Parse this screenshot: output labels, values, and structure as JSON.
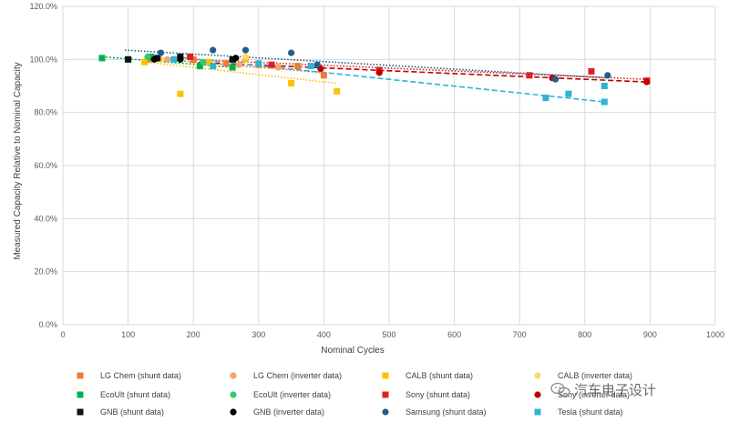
{
  "chart_data": {
    "type": "scatter",
    "title": "",
    "xlabel": "Nominal Cycles",
    "ylabel": "Measured Capacity Relative to Nominal Capacity",
    "xlim": [
      0,
      1000
    ],
    "ylim": [
      0,
      120
    ],
    "x_ticks": [
      0,
      100,
      200,
      300,
      400,
      500,
      600,
      700,
      800,
      900,
      1000
    ],
    "y_ticks": [
      "0.0%",
      "20.0%",
      "40.0%",
      "60.0%",
      "80.0%",
      "100.0%",
      "120.0%"
    ],
    "grid": true,
    "legend_position": "bottom",
    "series": [
      {
        "name": "LG Chem (shunt data)",
        "color": "#ed7d31",
        "marker": "square",
        "points": [
          [
            130,
            100
          ],
          [
            200,
            100
          ],
          [
            250,
            98.5
          ],
          [
            300,
            98
          ],
          [
            360,
            97.5
          ],
          [
            400,
            94
          ]
        ],
        "trend": [
          [
            130,
            100.5
          ],
          [
            400,
            95
          ]
        ]
      },
      {
        "name": "LG Chem (inverter data)",
        "color": "#f4a26a",
        "marker": "circle",
        "points": [
          [
            160,
            100
          ],
          [
            220,
            99
          ],
          [
            270,
            98
          ],
          [
            330,
            97
          ]
        ],
        "trend": null
      },
      {
        "name": "CALB (shunt data)",
        "color": "#ffc000",
        "marker": "square",
        "points": [
          [
            125,
            99
          ],
          [
            180,
            87
          ],
          [
            225,
            99
          ],
          [
            280,
            100
          ],
          [
            350,
            91
          ],
          [
            420,
            88
          ]
        ],
        "trend": [
          [
            125,
            99
          ],
          [
            420,
            91
          ]
        ]
      },
      {
        "name": "CALB (inverter data)",
        "color": "#ffd966",
        "marker": "circle",
        "points": [
          [
            150,
            100
          ],
          [
            280,
            101
          ]
        ],
        "trend": null
      },
      {
        "name": "EcoUlt (shunt data)",
        "color": "#00b050",
        "marker": "square",
        "points": [
          [
            60,
            100.5
          ],
          [
            100,
            100
          ],
          [
            135,
            101
          ],
          [
            210,
            97.5
          ],
          [
            260,
            97
          ]
        ],
        "trend": [
          [
            60,
            101
          ],
          [
            260,
            97
          ]
        ]
      },
      {
        "name": "EcoUlt (inverter data)",
        "color": "#33cc66",
        "marker": "circle",
        "points": [
          [
            130,
            101
          ],
          [
            215,
            99
          ]
        ],
        "trend": null
      },
      {
        "name": "Sony (shunt data)",
        "color": "#e02020",
        "marker": "square",
        "points": [
          [
            195,
            101
          ],
          [
            320,
            98
          ],
          [
            485,
            96
          ],
          [
            715,
            94
          ],
          [
            810,
            95.5
          ],
          [
            895,
            92
          ]
        ],
        "trend": [
          [
            195,
            100
          ],
          [
            895,
            92.5
          ]
        ]
      },
      {
        "name": "Sony (inverter data)",
        "color": "#c00000",
        "marker": "circle",
        "points": [
          [
            395,
            96.5
          ],
          [
            485,
            95
          ],
          [
            750,
            93
          ],
          [
            895,
            91.5
          ]
        ],
        "trend": [
          [
            195,
            99
          ],
          [
            895,
            91.5
          ]
        ]
      },
      {
        "name": "GNB (shunt data)",
        "color": "#111111",
        "marker": "square",
        "points": [
          [
            100,
            100
          ],
          [
            145,
            100.5
          ],
          [
            180,
            101
          ],
          [
            260,
            100
          ]
        ],
        "trend": null
      },
      {
        "name": "GNB (inverter data)",
        "color": "#000000",
        "marker": "circle",
        "points": [
          [
            140,
            100
          ],
          [
            180,
            100
          ],
          [
            265,
            100.5
          ]
        ],
        "trend": null
      },
      {
        "name": "Samsung (shunt data)",
        "color": "#1f5f8b",
        "marker": "circle",
        "points": [
          [
            150,
            102.5
          ],
          [
            230,
            103.5
          ],
          [
            280,
            103.5
          ],
          [
            350,
            102.5
          ],
          [
            390,
            98
          ],
          [
            755,
            92.5
          ],
          [
            835,
            94
          ]
        ],
        "trend": [
          [
            95,
            103.5
          ],
          [
            835,
            93
          ]
        ]
      },
      {
        "name": "Tesla (shunt data)",
        "color": "#2eb2d6",
        "marker": "square",
        "points": [
          [
            170,
            100
          ],
          [
            230,
            97.5
          ],
          [
            300,
            98.5
          ],
          [
            380,
            97.5
          ],
          [
            740,
            85.5
          ],
          [
            775,
            87
          ],
          [
            830,
            84
          ],
          [
            830,
            90
          ]
        ],
        "trend": [
          [
            170,
            101
          ],
          [
            830,
            84
          ]
        ]
      }
    ]
  },
  "watermark": {
    "text": "汽车电子设计"
  }
}
